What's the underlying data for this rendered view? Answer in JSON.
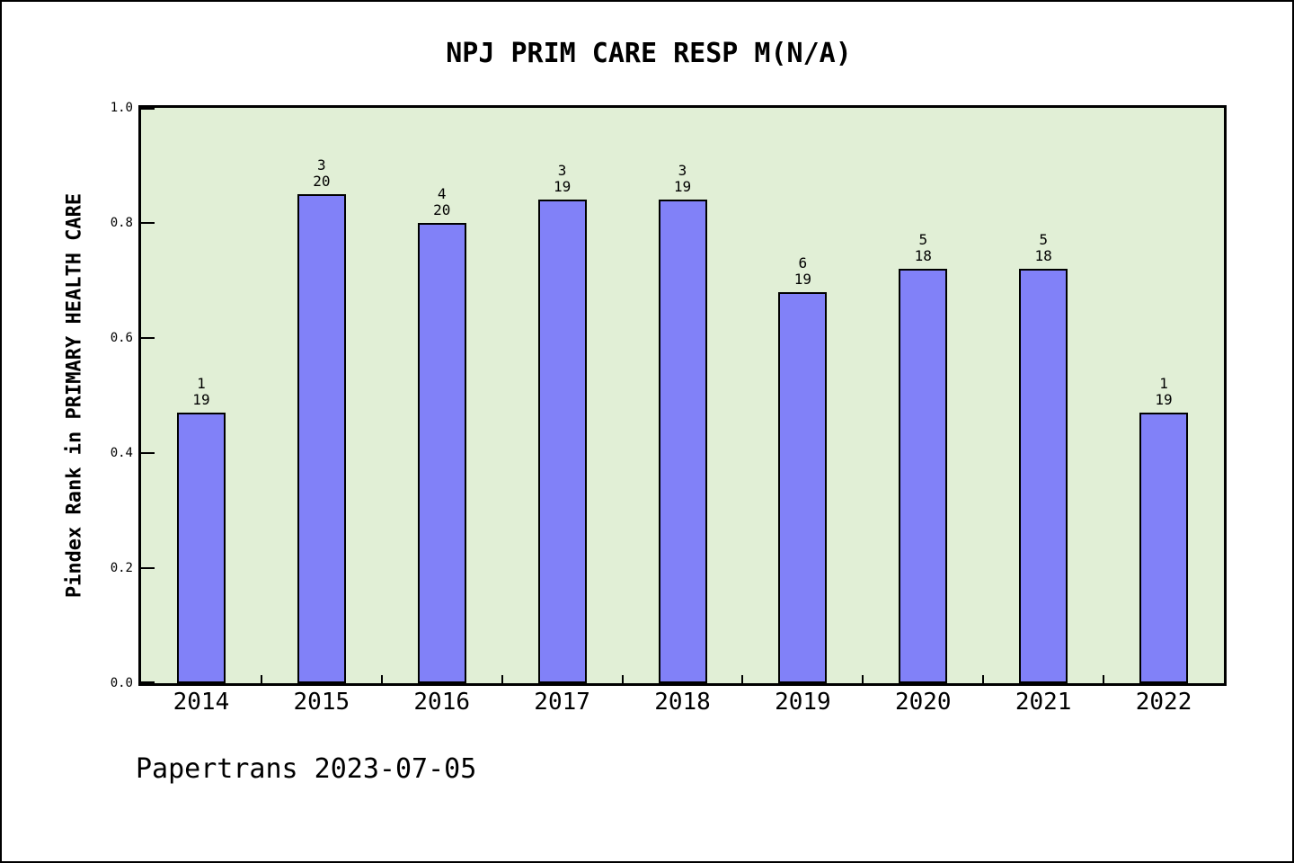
{
  "title": "NPJ PRIM CARE RESP M(N/A)",
  "footer": "Papertrans 2023-07-05",
  "chart_data": {
    "type": "bar",
    "title": "NPJ PRIM CARE RESP M(N/A)",
    "xlabel": "",
    "ylabel": "Pindex Rank in PRIMARY HEALTH CARE",
    "categories": [
      "2014",
      "2015",
      "2016",
      "2017",
      "2018",
      "2019",
      "2020",
      "2021",
      "2022"
    ],
    "values": [
      0.47,
      0.85,
      0.8,
      0.84,
      0.84,
      0.68,
      0.72,
      0.72,
      0.47
    ],
    "bar_labels": [
      {
        "numerator": "1",
        "denominator": "19"
      },
      {
        "numerator": "3",
        "denominator": "20"
      },
      {
        "numerator": "4",
        "denominator": "20"
      },
      {
        "numerator": "3",
        "denominator": "19"
      },
      {
        "numerator": "3",
        "denominator": "19"
      },
      {
        "numerator": "6",
        "denominator": "19"
      },
      {
        "numerator": "5",
        "denominator": "18"
      },
      {
        "numerator": "5",
        "denominator": "18"
      },
      {
        "numerator": "1",
        "denominator": "19"
      }
    ],
    "ylim": [
      0.0,
      1.0
    ],
    "yticks": [
      0.0,
      0.2,
      0.4,
      0.6,
      0.8,
      1.0
    ],
    "ytick_labels": [
      "0.0",
      "0.2",
      "0.4",
      "0.6",
      "0.8",
      "1.0"
    ],
    "grid": false,
    "legend": null,
    "colors": {
      "bar_fill": "#8181f8",
      "bar_edge": "#000000",
      "plot_bg": "#e1efd6",
      "page_bg": "#ffffff",
      "text": "#000000"
    }
  }
}
